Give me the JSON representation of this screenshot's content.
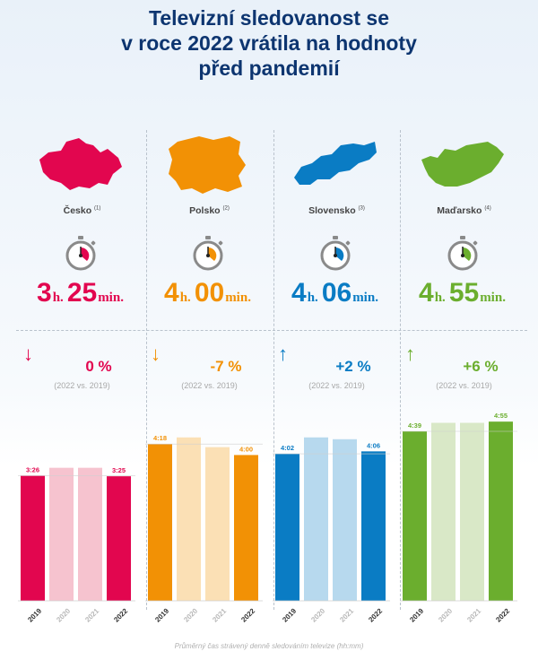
{
  "title": {
    "line1": "Televizní sledovanost se",
    "line2": "v roce 2022 vrátila na hodnoty",
    "line3": "před pandemií"
  },
  "footer": "Průměrný čas strávený denně sledováním televize (hh:mm)",
  "colors": {
    "title": "#0d3570",
    "cz": "#e2064f",
    "pl": "#f29105",
    "sk": "#0a7cc4",
    "hu": "#6bae2e"
  },
  "chart_data": [
    {
      "type": "bar",
      "country": "Česko",
      "note": "(1)",
      "headline": {
        "hours": "3",
        "hours_unit": "h.",
        "minutes": "25",
        "minutes_unit": "min."
      },
      "change": "0 %",
      "direction": "down",
      "comparison": "(2022 vs. 2019)",
      "categories": [
        "2019",
        "2020",
        "2021",
        "2022"
      ],
      "values_minutes": [
        206,
        219,
        219,
        205
      ],
      "labels": [
        "3:26",
        "",
        "",
        "3:25"
      ],
      "ylim_minutes": [
        0,
        310
      ],
      "highlight": [
        true,
        false,
        false,
        true
      ],
      "color": "#e2064f",
      "light_color": "#f6c3cf"
    },
    {
      "type": "bar",
      "country": "Polsko",
      "note": "(2)",
      "headline": {
        "hours": "4",
        "hours_unit": "h.",
        "minutes": "00",
        "minutes_unit": "min."
      },
      "change": "-7 %",
      "direction": "down",
      "comparison": "(2022 vs. 2019)",
      "categories": [
        "2019",
        "2020",
        "2021",
        "2022"
      ],
      "values_minutes": [
        258,
        269,
        253,
        240
      ],
      "labels": [
        "4:18",
        "",
        "",
        "4:00"
      ],
      "ylim_minutes": [
        0,
        310
      ],
      "highlight": [
        true,
        false,
        false,
        true
      ],
      "color": "#f29105",
      "light_color": "#fbe0b5"
    },
    {
      "type": "bar",
      "country": "Slovensko",
      "note": "(3)",
      "headline": {
        "hours": "4",
        "hours_unit": "h.",
        "minutes": "06",
        "minutes_unit": "min."
      },
      "change": "+2 %",
      "direction": "up",
      "comparison": "(2022 vs. 2019)",
      "categories": [
        "2019",
        "2020",
        "2021",
        "2022"
      ],
      "values_minutes": [
        242,
        269,
        266,
        246
      ],
      "labels": [
        "4:02",
        "",
        "",
        "4:06"
      ],
      "ylim_minutes": [
        0,
        310
      ],
      "highlight": [
        true,
        false,
        false,
        true
      ],
      "color": "#0a7cc4",
      "light_color": "#b7d9ee"
    },
    {
      "type": "bar",
      "country": "Maďarsko",
      "note": "(4)",
      "headline": {
        "hours": "4",
        "hours_unit": "h.",
        "minutes": "55",
        "minutes_unit": "min."
      },
      "change": "+6 %",
      "direction": "up",
      "comparison": "(2022 vs. 2019)",
      "categories": [
        "2019",
        "2020",
        "2021",
        "2022"
      ],
      "values_minutes": [
        279,
        293,
        293,
        295
      ],
      "labels": [
        "4:39",
        "",
        "",
        "4:55"
      ],
      "ylim_minutes": [
        0,
        310
      ],
      "highlight": [
        true,
        false,
        false,
        true
      ],
      "color": "#6bae2e",
      "light_color": "#d9e8c7"
    }
  ]
}
